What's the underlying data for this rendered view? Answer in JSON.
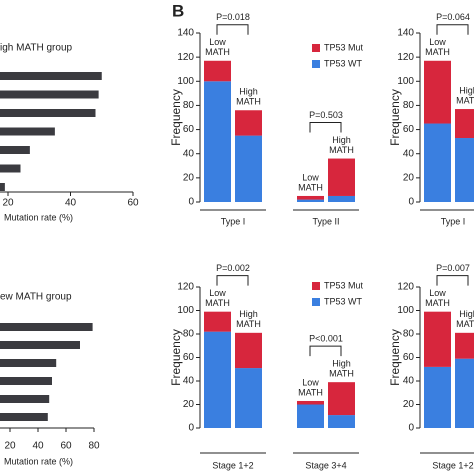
{
  "panel_label": "B",
  "chart_data": [
    {
      "type": "hbar",
      "title": "igh MATH group",
      "xlabel": "Mutation rate (%)",
      "values": [
        50,
        49,
        48,
        35,
        27,
        24,
        19
      ],
      "color": "#3b3b40",
      "xlim": [
        0,
        60
      ],
      "xticks": [
        20,
        40,
        60
      ]
    },
    {
      "type": "hbar",
      "title": "ew MATH group",
      "xlabel": "Mutation rate (%)",
      "values": [
        79,
        70,
        53,
        50,
        48,
        47
      ],
      "color": "#3b3b40",
      "xlim": [
        0,
        80
      ],
      "xticks": [
        20,
        40,
        60,
        80
      ]
    },
    {
      "type": "stacked_bar",
      "ylabel": "Frequency",
      "groups": [
        "Type I",
        "Type II"
      ],
      "bar_labels": [
        [
          "Low",
          "MATH"
        ],
        [
          "High",
          "MATH"
        ],
        [
          "Low",
          "MATH"
        ],
        [
          "High",
          "MATH"
        ]
      ],
      "pvalues": [
        "P=0.018",
        "P=0.503"
      ],
      "series": [
        {
          "name": "TP53 Mut",
          "color": "#d7263d",
          "values": [
            17,
            21,
            3,
            31
          ]
        },
        {
          "name": "TP53 WT",
          "color": "#3a7fe0",
          "values": [
            100,
            55,
            2,
            5
          ]
        }
      ],
      "ylim": [
        0,
        140
      ],
      "yticks": [
        0,
        20,
        40,
        60,
        80,
        100,
        120,
        140
      ],
      "legend": true
    },
    {
      "type": "stacked_bar",
      "ylabel": "Frequency",
      "groups": [
        "Type I"
      ],
      "bar_labels": [
        [
          "Low",
          "MATH"
        ],
        [
          "High",
          "MATH"
        ]
      ],
      "pvalues": [
        "P=0.064"
      ],
      "series": [
        {
          "color": "#d7263d",
          "values": [
            52,
            24
          ]
        },
        {
          "color": "#3a7fe0",
          "values": [
            65,
            53
          ]
        }
      ],
      "ylim": [
        0,
        140
      ],
      "yticks": [
        0,
        20,
        40,
        60,
        80,
        100,
        120,
        140
      ],
      "legend": false
    },
    {
      "type": "stacked_bar",
      "ylabel": "Frequency",
      "groups": [
        "Stage 1+2",
        "Stage 3+4"
      ],
      "bar_labels": [
        [
          "Low",
          "MATH"
        ],
        [
          "High",
          "MATH"
        ],
        [
          "Low",
          "MATH"
        ],
        [
          "High",
          "MATH"
        ]
      ],
      "pvalues": [
        "P=0.002",
        "P<0.001"
      ],
      "series": [
        {
          "name": "TP53 Mut",
          "color": "#d7263d",
          "values": [
            17,
            30,
            3,
            28
          ]
        },
        {
          "name": "TP53 WT",
          "color": "#3a7fe0",
          "values": [
            82,
            51,
            20,
            11
          ]
        }
      ],
      "ylim": [
        0,
        120
      ],
      "yticks": [
        0,
        20,
        40,
        60,
        80,
        100,
        120
      ],
      "legend": true
    },
    {
      "type": "stacked_bar",
      "ylabel": "Frequency",
      "groups": [
        "Stage 1+2"
      ],
      "bar_labels": [
        [
          "Low",
          "MATH"
        ],
        [
          "High",
          "MATH"
        ]
      ],
      "pvalues": [
        "P=0.007"
      ],
      "series": [
        {
          "color": "#d7263d",
          "values": [
            47,
            22
          ]
        },
        {
          "color": "#3a7fe0",
          "values": [
            52,
            59
          ]
        }
      ],
      "ylim": [
        0,
        120
      ],
      "yticks": [
        0,
        20,
        40,
        60,
        80,
        100,
        120
      ],
      "legend": false
    }
  ]
}
